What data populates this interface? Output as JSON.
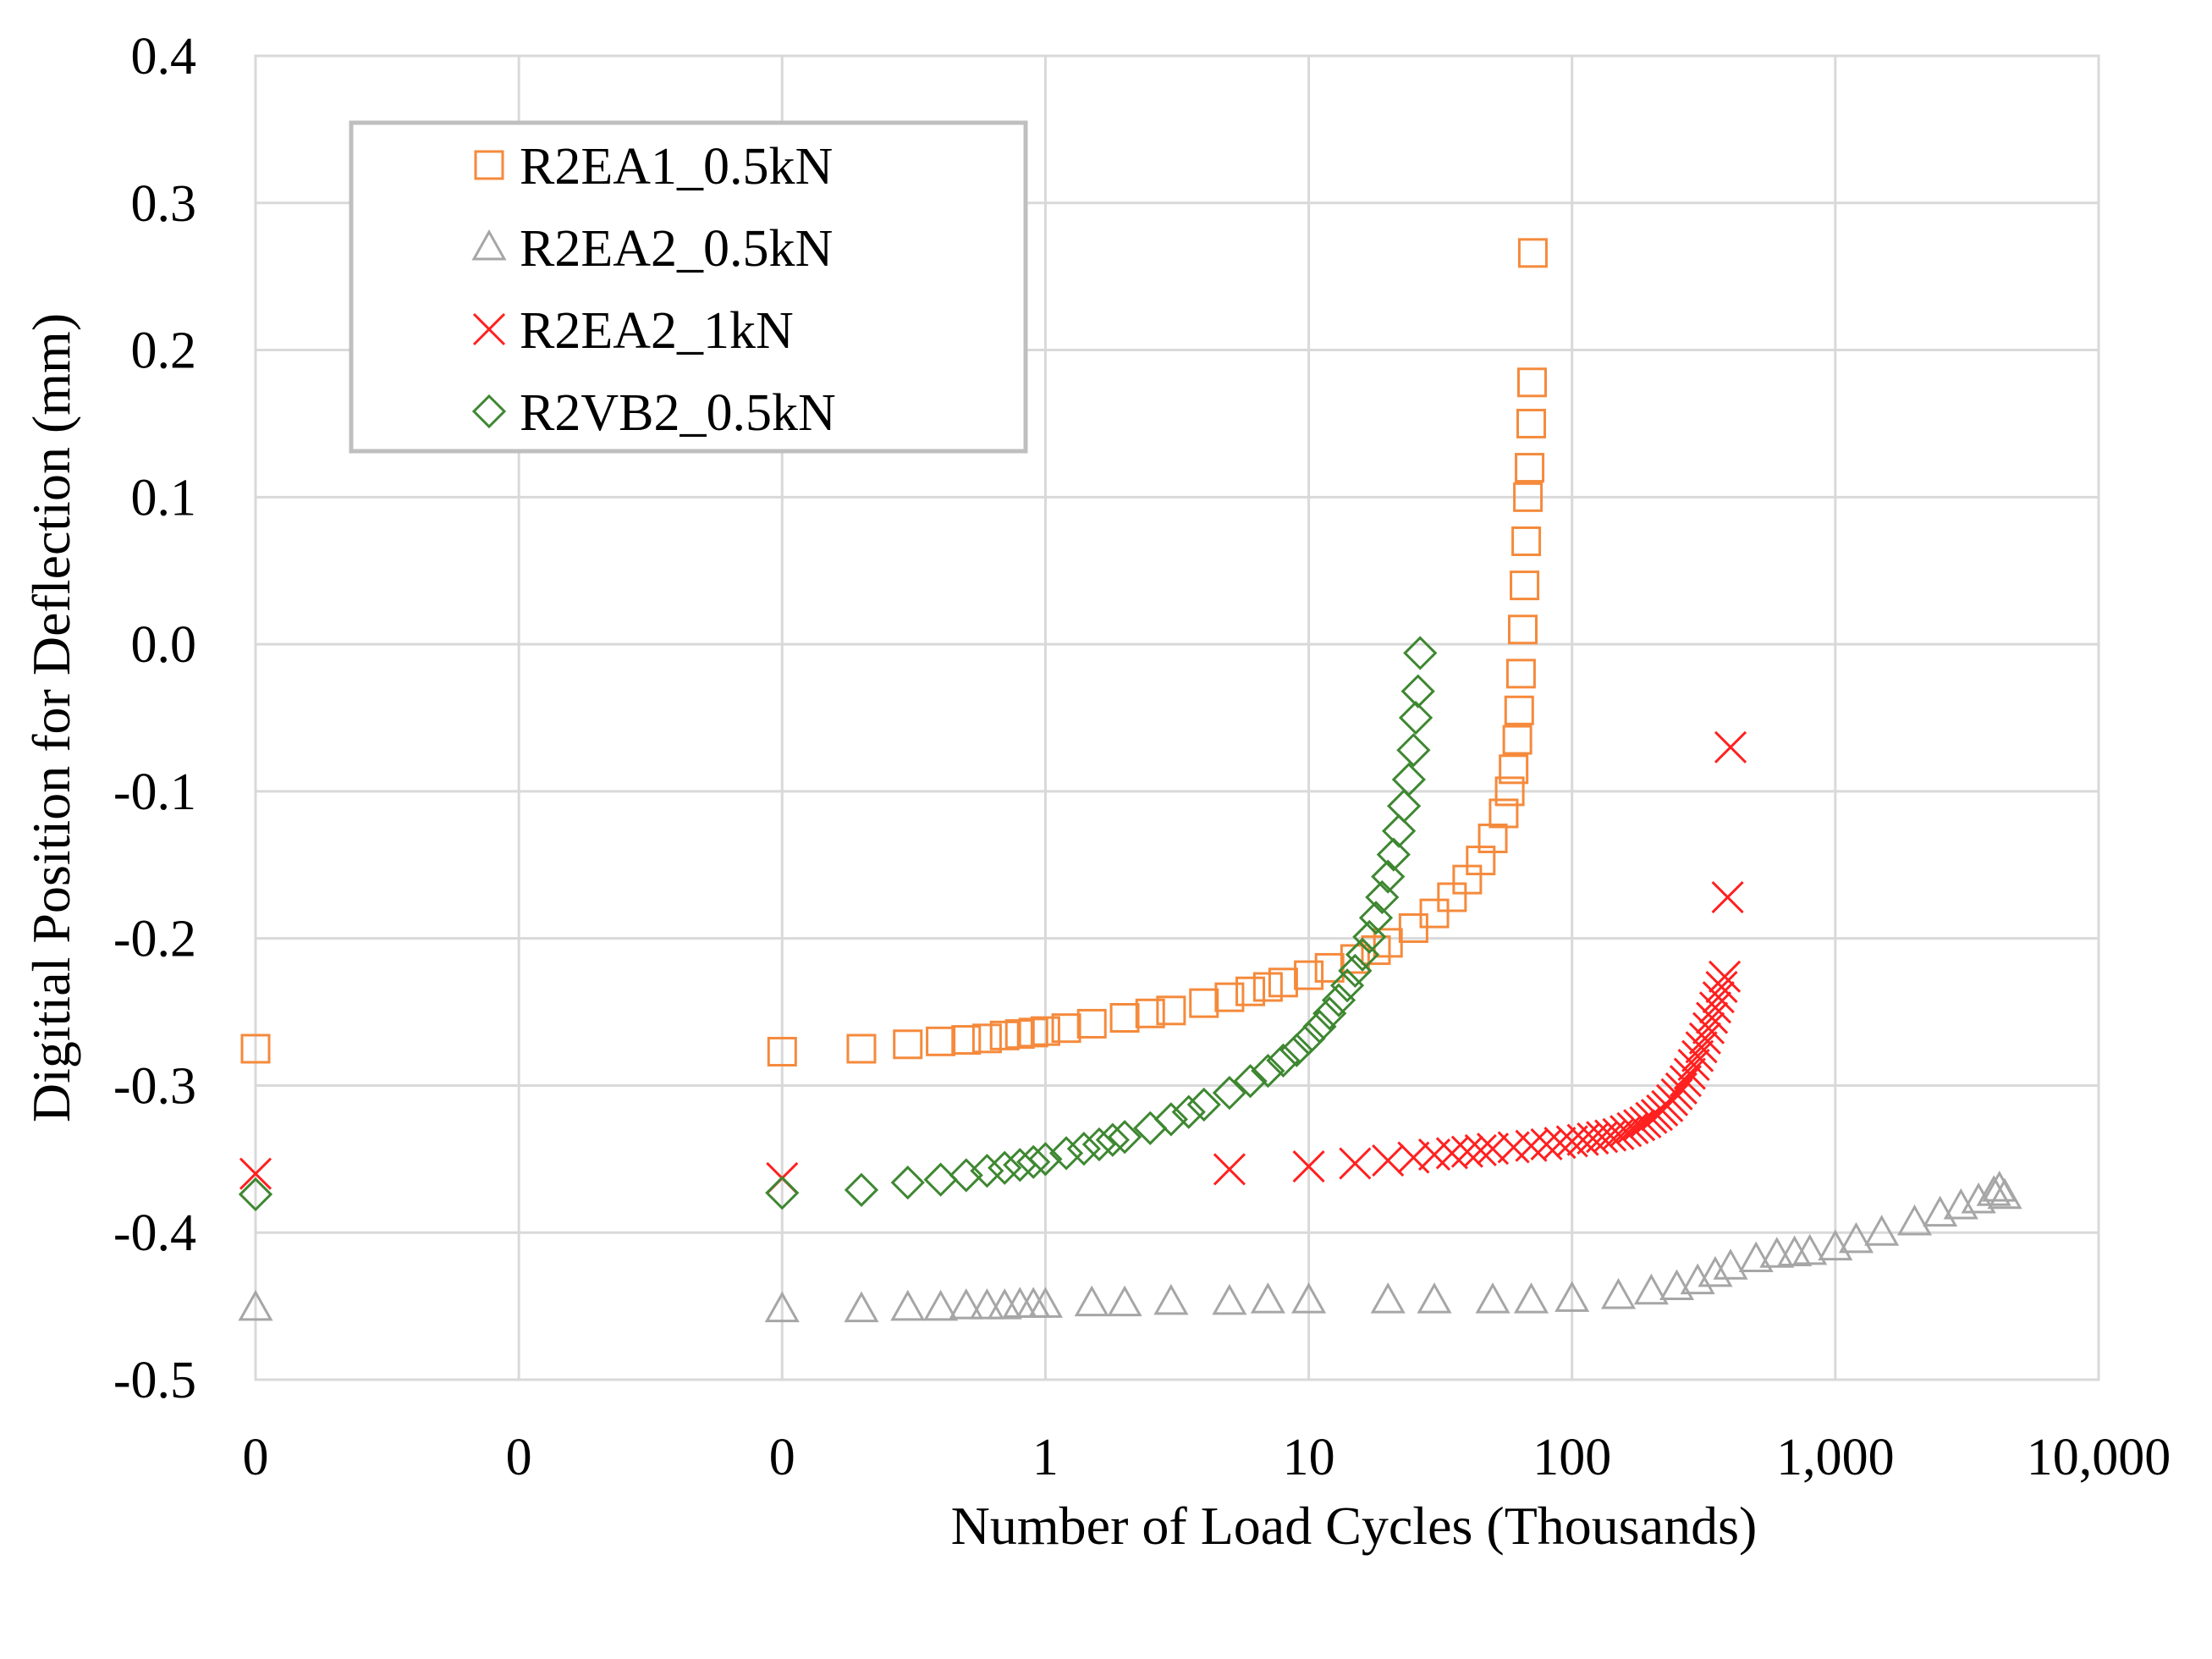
{
  "chart_data": {
    "type": "scatter",
    "title": "",
    "xlabel": "Number of Load Cycles (Thousands)",
    "ylabel": "Digitial Position for Deflection (mm)",
    "xscale": "log",
    "xlim": [
      0.001,
      10000
    ],
    "ylim": [
      -0.5,
      0.4
    ],
    "xtick_values": [
      0.001,
      0.01,
      0.1,
      1,
      10,
      100,
      1000,
      10000
    ],
    "xtick_labels": [
      "0",
      "0",
      "0",
      "1",
      "10",
      "100",
      "1,000",
      "10,000"
    ],
    "ytick_values": [
      0.4,
      0.3,
      0.2,
      0.1,
      0.0,
      -0.1,
      -0.2,
      -0.3,
      -0.4,
      -0.5
    ],
    "ytick_labels": [
      "0.4",
      "0.3",
      "0.2",
      "0.1",
      "0.0",
      "-0.1",
      "-0.2",
      "-0.3",
      "-0.4",
      "-0.5"
    ],
    "grid": true,
    "legend_position": "top-left",
    "series": [
      {
        "name": "R2EA1_0.5kN",
        "marker": "square",
        "color": "#F58A3C",
        "x": [
          0.001,
          0.1,
          0.2,
          0.3,
          0.4,
          0.5,
          0.6,
          0.7,
          0.8,
          0.9,
          1,
          1.2,
          1.5,
          2,
          2.5,
          3,
          4,
          5,
          6,
          7,
          8,
          10,
          12,
          15,
          18,
          20,
          25,
          30,
          35,
          40,
          45,
          50,
          55,
          58,
          60,
          62,
          63,
          64,
          65,
          66,
          67,
          68,
          69,
          70,
          70.5,
          71
        ],
        "y": [
          -0.275,
          -0.277,
          -0.275,
          -0.272,
          -0.27,
          -0.269,
          -0.268,
          -0.266,
          -0.265,
          -0.264,
          -0.263,
          -0.261,
          -0.258,
          -0.254,
          -0.251,
          -0.249,
          -0.244,
          -0.24,
          -0.236,
          -0.233,
          -0.23,
          -0.225,
          -0.22,
          -0.214,
          -0.208,
          -0.203,
          -0.193,
          -0.183,
          -0.172,
          -0.16,
          -0.147,
          -0.132,
          -0.115,
          -0.1,
          -0.085,
          -0.065,
          -0.045,
          -0.02,
          0.01,
          0.04,
          0.07,
          0.1,
          0.12,
          0.15,
          0.178,
          0.266
        ]
      },
      {
        "name": "R2EA2_0.5kN",
        "marker": "triangle",
        "color": "#A6A6A6",
        "x": [
          0.001,
          0.1,
          0.2,
          0.3,
          0.4,
          0.5,
          0.6,
          0.7,
          0.8,
          0.9,
          1,
          1.5,
          2,
          3,
          5,
          7,
          10,
          20,
          30,
          50,
          70,
          100,
          150,
          200,
          250,
          300,
          350,
          400,
          500,
          600,
          700,
          800,
          1000,
          1200,
          1500,
          2000,
          2500,
          3000,
          3500,
          4000,
          4200,
          4400
        ],
        "y": [
          -0.451,
          -0.452,
          -0.452,
          -0.451,
          -0.451,
          -0.45,
          -0.45,
          -0.45,
          -0.449,
          -0.449,
          -0.449,
          -0.448,
          -0.448,
          -0.447,
          -0.447,
          -0.446,
          -0.446,
          -0.446,
          -0.446,
          -0.446,
          -0.446,
          -0.445,
          -0.443,
          -0.44,
          -0.437,
          -0.433,
          -0.428,
          -0.423,
          -0.418,
          -0.415,
          -0.414,
          -0.413,
          -0.41,
          -0.405,
          -0.4,
          -0.393,
          -0.387,
          -0.382,
          -0.378,
          -0.373,
          -0.37,
          -0.375
        ]
      },
      {
        "name": "R2EA2_1kN",
        "marker": "x",
        "color": "#FF2020",
        "x": [
          0.001,
          0.1,
          5,
          10,
          15,
          20,
          25,
          30,
          35,
          40,
          45,
          50,
          60,
          70,
          80,
          90,
          100,
          110,
          120,
          130,
          140,
          150,
          160,
          170,
          180,
          190,
          200,
          210,
          220,
          230,
          240,
          250,
          260,
          270,
          280,
          290,
          300,
          310,
          320,
          330,
          340,
          350,
          360,
          370,
          380,
          390,
          400
        ],
        "y": [
          -0.36,
          -0.363,
          -0.357,
          -0.355,
          -0.353,
          -0.351,
          -0.349,
          -0.347,
          -0.346,
          -0.345,
          -0.344,
          -0.343,
          -0.342,
          -0.341,
          -0.34,
          -0.339,
          -0.338,
          -0.337,
          -0.336,
          -0.335,
          -0.334,
          -0.333,
          -0.331,
          -0.329,
          -0.327,
          -0.325,
          -0.322,
          -0.32,
          -0.317,
          -0.314,
          -0.31,
          -0.306,
          -0.302,
          -0.297,
          -0.292,
          -0.286,
          -0.28,
          -0.274,
          -0.268,
          -0.261,
          -0.254,
          -0.247,
          -0.24,
          -0.233,
          -0.226,
          -0.172,
          -0.07
        ]
      },
      {
        "name": "R2VB2_0.5kN",
        "marker": "diamond",
        "color": "#3E8731",
        "x": [
          0.001,
          0.1,
          0.2,
          0.3,
          0.4,
          0.5,
          0.6,
          0.7,
          0.8,
          0.9,
          1,
          1.2,
          1.4,
          1.6,
          1.8,
          2,
          2.5,
          3,
          3.5,
          4,
          5,
          6,
          7,
          8,
          9,
          10,
          11,
          12,
          13,
          14,
          15,
          16,
          17,
          18,
          19,
          20,
          21,
          22,
          23,
          24,
          25,
          25.5,
          26,
          26.5
        ],
        "y": [
          -0.374,
          -0.373,
          -0.371,
          -0.366,
          -0.364,
          -0.361,
          -0.358,
          -0.356,
          -0.354,
          -0.352,
          -0.35,
          -0.346,
          -0.343,
          -0.34,
          -0.337,
          -0.335,
          -0.329,
          -0.323,
          -0.318,
          -0.313,
          -0.305,
          -0.297,
          -0.29,
          -0.283,
          -0.276,
          -0.268,
          -0.26,
          -0.251,
          -0.242,
          -0.232,
          -0.222,
          -0.211,
          -0.199,
          -0.186,
          -0.172,
          -0.158,
          -0.143,
          -0.127,
          -0.11,
          -0.092,
          -0.072,
          -0.05,
          -0.032,
          -0.006
        ]
      }
    ]
  }
}
